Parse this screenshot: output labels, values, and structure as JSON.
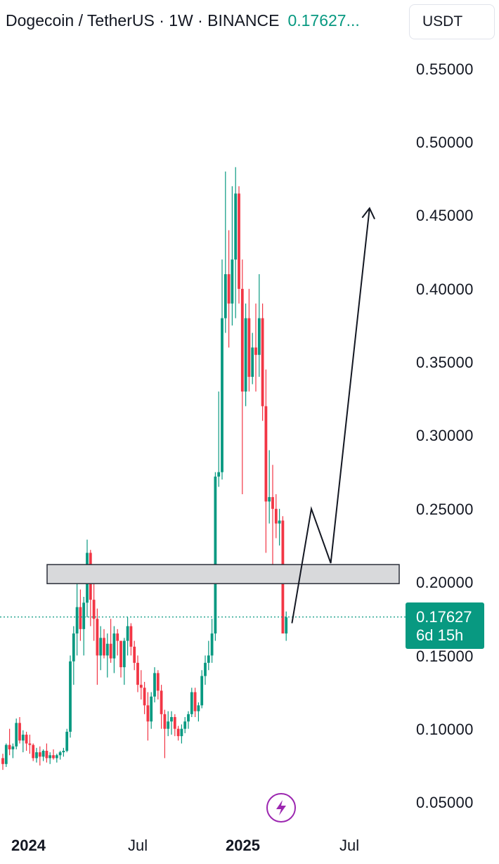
{
  "header": {
    "symbol": "Dogecoin / TetherUS · 1W · BINANCE",
    "price": "0.17627..."
  },
  "currency_button": "USDT",
  "price_axis": {
    "ticks": [
      "0.55000",
      "0.50000",
      "0.45000",
      "0.40000",
      "0.35000",
      "0.30000",
      "0.25000",
      "0.20000",
      "0.15000",
      "0.10000",
      "0.05000"
    ]
  },
  "time_axis": {
    "ticks": [
      {
        "label": "2024",
        "bold": true
      },
      {
        "label": "Jul",
        "bold": false
      },
      {
        "label": "2025",
        "bold": true
      },
      {
        "label": "Jul",
        "bold": false
      }
    ]
  },
  "last_price": {
    "value": "0.17627",
    "countdown": "6d 15h"
  },
  "colors": {
    "up": "#089981",
    "down": "#f23645",
    "zone_fill": "#d8d9db",
    "zone_stroke": "#2a2e39",
    "dotted": "#089981",
    "projection": "#131722",
    "flash": "#9c27b0"
  },
  "icons": {
    "flash": "lightning-icon"
  },
  "chart_data": {
    "type": "candlestick",
    "title": "Dogecoin / TetherUS · 1W · BINANCE",
    "x_start": "2023-12",
    "y_unit": "USDT",
    "ylim": [
      0.03,
      0.57
    ],
    "y_ticks": [
      0.05,
      0.1,
      0.15,
      0.2,
      0.25,
      0.3,
      0.35,
      0.4,
      0.45,
      0.5,
      0.55
    ],
    "grid": false,
    "candles": [
      [
        0.08,
        0.083,
        0.072,
        0.076
      ],
      [
        0.076,
        0.09,
        0.074,
        0.089
      ],
      [
        0.089,
        0.1,
        0.082,
        0.086
      ],
      [
        0.086,
        0.09,
        0.08,
        0.088
      ],
      [
        0.088,
        0.107,
        0.086,
        0.104
      ],
      [
        0.104,
        0.108,
        0.09,
        0.092
      ],
      [
        0.092,
        0.099,
        0.084,
        0.096
      ],
      [
        0.096,
        0.098,
        0.085,
        0.09
      ],
      [
        0.09,
        0.096,
        0.083,
        0.089
      ],
      [
        0.089,
        0.09,
        0.078,
        0.08
      ],
      [
        0.08,
        0.087,
        0.077,
        0.084
      ],
      [
        0.084,
        0.088,
        0.075,
        0.081
      ],
      [
        0.081,
        0.086,
        0.078,
        0.085
      ],
      [
        0.085,
        0.09,
        0.077,
        0.08
      ],
      [
        0.08,
        0.084,
        0.076,
        0.082
      ],
      [
        0.082,
        0.086,
        0.079,
        0.08
      ],
      [
        0.08,
        0.083,
        0.077,
        0.082
      ],
      [
        0.082,
        0.085,
        0.079,
        0.084
      ],
      [
        0.084,
        0.087,
        0.081,
        0.085
      ],
      [
        0.085,
        0.1,
        0.084,
        0.098
      ],
      [
        0.098,
        0.15,
        0.094,
        0.146
      ],
      [
        0.146,
        0.17,
        0.13,
        0.165
      ],
      [
        0.165,
        0.206,
        0.15,
        0.183
      ],
      [
        0.183,
        0.195,
        0.16,
        0.168
      ],
      [
        0.168,
        0.19,
        0.15,
        0.186
      ],
      [
        0.186,
        0.229,
        0.176,
        0.22
      ],
      [
        0.22,
        0.222,
        0.17,
        0.188
      ],
      [
        0.188,
        0.21,
        0.16,
        0.175
      ],
      [
        0.175,
        0.182,
        0.13,
        0.15
      ],
      [
        0.15,
        0.17,
        0.14,
        0.162
      ],
      [
        0.162,
        0.168,
        0.148,
        0.15
      ],
      [
        0.15,
        0.165,
        0.135,
        0.158
      ],
      [
        0.158,
        0.175,
        0.145,
        0.148
      ],
      [
        0.148,
        0.17,
        0.138,
        0.165
      ],
      [
        0.165,
        0.168,
        0.15,
        0.16
      ],
      [
        0.16,
        0.16,
        0.135,
        0.142
      ],
      [
        0.142,
        0.162,
        0.13,
        0.16
      ],
      [
        0.16,
        0.176,
        0.15,
        0.17
      ],
      [
        0.17,
        0.172,
        0.15,
        0.156
      ],
      [
        0.156,
        0.16,
        0.14,
        0.145
      ],
      [
        0.145,
        0.15,
        0.125,
        0.13
      ],
      [
        0.13,
        0.14,
        0.12,
        0.128
      ],
      [
        0.128,
        0.132,
        0.11,
        0.116
      ],
      [
        0.116,
        0.125,
        0.092,
        0.105
      ],
      [
        0.105,
        0.125,
        0.1,
        0.122
      ],
      [
        0.122,
        0.142,
        0.118,
        0.138
      ],
      [
        0.138,
        0.14,
        0.12,
        0.126
      ],
      [
        0.126,
        0.13,
        0.1,
        0.11
      ],
      [
        0.11,
        0.113,
        0.08,
        0.1
      ],
      [
        0.1,
        0.112,
        0.095,
        0.105
      ],
      [
        0.105,
        0.112,
        0.096,
        0.108
      ],
      [
        0.108,
        0.11,
        0.095,
        0.1
      ],
      [
        0.1,
        0.102,
        0.092,
        0.095
      ],
      [
        0.095,
        0.103,
        0.09,
        0.1
      ],
      [
        0.1,
        0.108,
        0.097,
        0.105
      ],
      [
        0.105,
        0.112,
        0.1,
        0.11
      ],
      [
        0.11,
        0.128,
        0.108,
        0.125
      ],
      [
        0.125,
        0.128,
        0.108,
        0.112
      ],
      [
        0.112,
        0.118,
        0.105,
        0.116
      ],
      [
        0.116,
        0.14,
        0.114,
        0.136
      ],
      [
        0.136,
        0.15,
        0.13,
        0.145
      ],
      [
        0.145,
        0.16,
        0.14,
        0.15
      ],
      [
        0.15,
        0.175,
        0.145,
        0.165
      ],
      [
        0.165,
        0.275,
        0.16,
        0.272
      ],
      [
        0.272,
        0.33,
        0.265,
        0.275
      ],
      [
        0.275,
        0.42,
        0.27,
        0.38
      ],
      [
        0.38,
        0.48,
        0.37,
        0.41
      ],
      [
        0.41,
        0.44,
        0.36,
        0.39
      ],
      [
        0.39,
        0.47,
        0.375,
        0.42
      ],
      [
        0.42,
        0.483,
        0.38,
        0.465
      ],
      [
        0.465,
        0.47,
        0.39,
        0.4
      ],
      [
        0.4,
        0.42,
        0.26,
        0.33
      ],
      [
        0.33,
        0.39,
        0.32,
        0.38
      ],
      [
        0.38,
        0.4,
        0.33,
        0.34
      ],
      [
        0.34,
        0.37,
        0.335,
        0.36
      ],
      [
        0.36,
        0.39,
        0.33,
        0.355
      ],
      [
        0.355,
        0.41,
        0.34,
        0.38
      ],
      [
        0.38,
        0.39,
        0.31,
        0.32
      ],
      [
        0.32,
        0.345,
        0.22,
        0.255
      ],
      [
        0.255,
        0.29,
        0.24,
        0.258
      ],
      [
        0.258,
        0.28,
        0.205,
        0.25
      ],
      [
        0.25,
        0.26,
        0.23,
        0.24
      ],
      [
        0.24,
        0.25,
        0.225,
        0.242
      ],
      [
        0.242,
        0.245,
        0.17,
        0.165
      ],
      [
        0.165,
        0.18,
        0.16,
        0.176
      ]
    ],
    "last_price": 0.17627,
    "annotations": {
      "resistance_zone": [
        0.199,
        0.212
      ],
      "projection_path": [
        {
          "date": "2025-03",
          "price": 0.172
        },
        {
          "date": "2025-04",
          "price": 0.25
        },
        {
          "date": "2025-05",
          "price": 0.213
        },
        {
          "date": "2025-07",
          "price": 0.455
        }
      ]
    }
  }
}
